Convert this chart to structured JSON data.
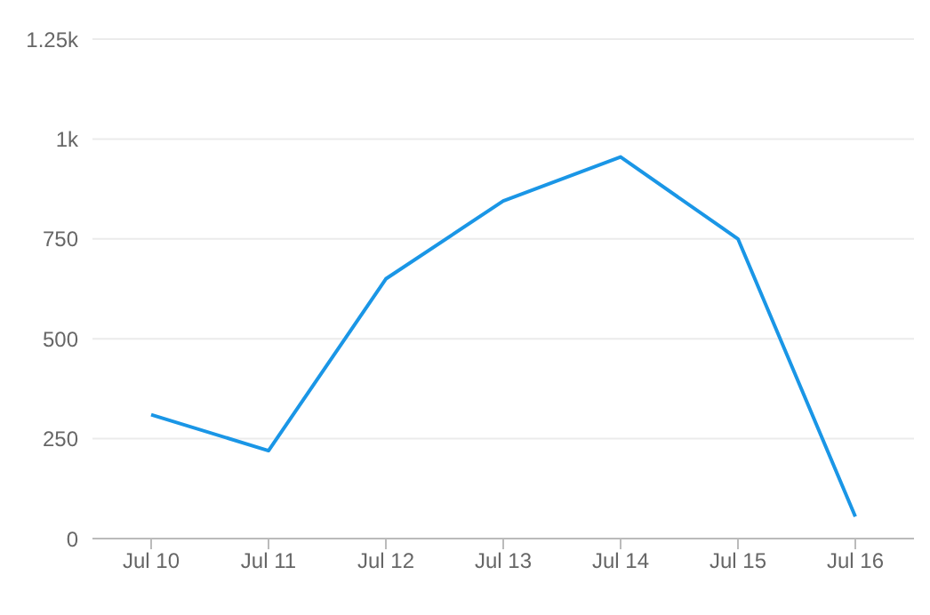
{
  "chart_data": {
    "type": "line",
    "categories": [
      "Jul 10",
      "Jul 11",
      "Jul 12",
      "Jul 13",
      "Jul 14",
      "Jul 15",
      "Jul 16"
    ],
    "series": [
      {
        "color": "#1a96e6",
        "values": [
          310,
          220,
          650,
          845,
          955,
          750,
          55
        ]
      }
    ],
    "ylim": [
      0,
      1250
    ],
    "yticks": [
      0,
      250,
      500,
      750,
      {
        "value": 1000,
        "label": "1k"
      },
      {
        "value": 1250,
        "label": "1.25k"
      }
    ],
    "grid": "y",
    "legend": false,
    "marker": "none",
    "line_style": "solid"
  }
}
